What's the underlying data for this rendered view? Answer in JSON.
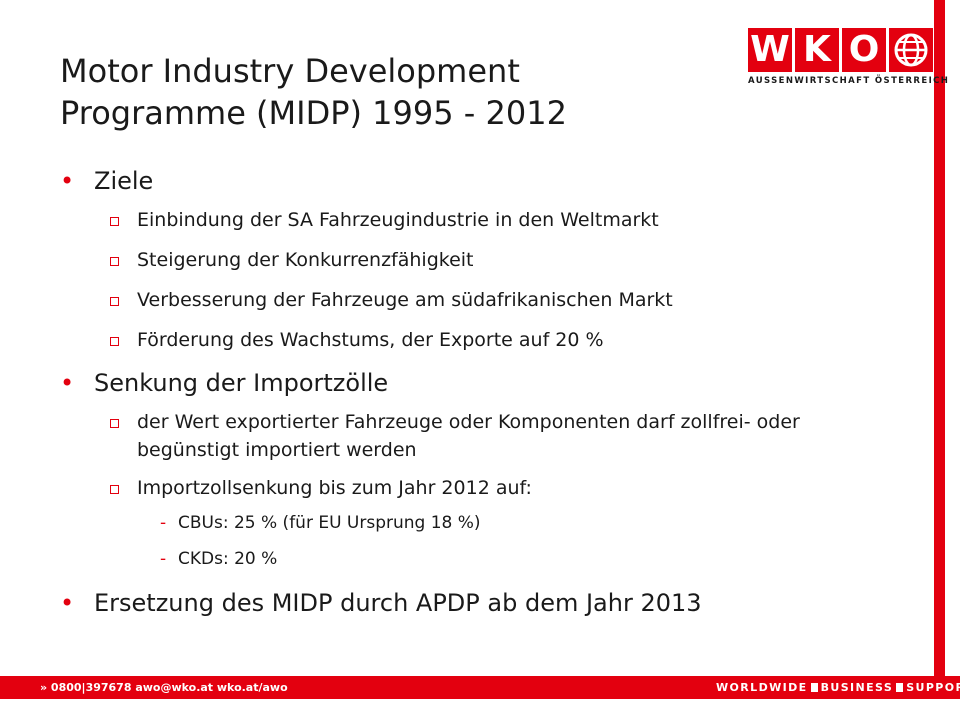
{
  "logo": {
    "letters": [
      "W",
      "K",
      "O"
    ],
    "subtitle": "AUSSENWIRTSCHAFT ÖSTERREICH",
    "globe_icon": "globe-icon"
  },
  "title": {
    "line1": "Motor Industry Development",
    "line2": "Programme (MIDP) 1995 - 2012"
  },
  "content": {
    "bullet_glyph": "•",
    "box_glyph": "□",
    "dash_glyph": "-",
    "sections": [
      {
        "heading": "Ziele",
        "items": [
          "Einbindung der SA Fahrzeugindustrie in den Weltmarkt",
          "Steigerung der Konkurrenzfähigkeit",
          "Verbesserung der Fahrzeuge am südafrikanischen Markt",
          "Förderung des Wachstums, der Exporte auf 20 %"
        ]
      },
      {
        "heading": "Senkung der Importzölle",
        "items": [
          "der Wert exportierter Fahrzeuge oder Komponenten darf zollfrei- oder begünstigt importiert werden",
          "Importzollsenkung bis zum Jahr 2012 auf:"
        ],
        "subitems": [
          "CBUs: 25 % (für EU Ursprung 18 %)",
          "CKDs: 20 %"
        ]
      },
      {
        "heading": "Ersetzung des MIDP durch APDP ab dem Jahr 2013"
      }
    ]
  },
  "footer": {
    "left": "» 0800|397678  awo@wko.at  wko.at/awo",
    "right_words": [
      "WORLDWIDE",
      "BUSINESS",
      "SUPPORT"
    ]
  },
  "colors": {
    "brand_red": "#e3000f",
    "text": "#1a1a1a",
    "background": "#ffffff"
  }
}
